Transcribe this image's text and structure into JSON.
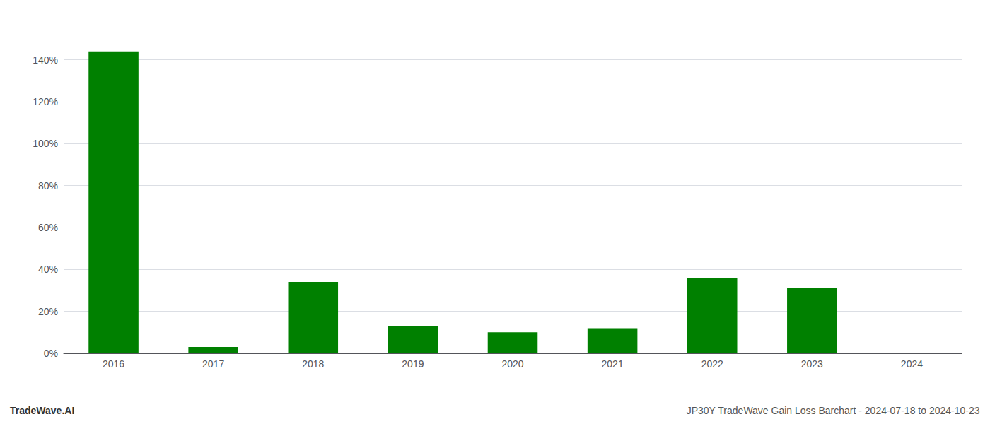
{
  "chart_data": {
    "type": "bar",
    "categories": [
      "2016",
      "2017",
      "2018",
      "2019",
      "2020",
      "2021",
      "2022",
      "2023",
      "2024"
    ],
    "values": [
      1.44,
      0.03,
      0.34,
      0.13,
      0.1,
      0.12,
      0.36,
      0.31,
      0.0
    ],
    "color": "#008000",
    "ylim": [
      0,
      1.55
    ],
    "yticks": [
      {
        "value": 0.0,
        "label": "0%"
      },
      {
        "value": 0.2,
        "label": "20%"
      },
      {
        "value": 0.4,
        "label": "40%"
      },
      {
        "value": 0.6,
        "label": "60%"
      },
      {
        "value": 0.8,
        "label": "80%"
      },
      {
        "value": 1.0,
        "label": "100%"
      },
      {
        "value": 1.2,
        "label": "120%"
      },
      {
        "value": 1.4,
        "label": "140%"
      }
    ],
    "grid": true,
    "annotations": [
      "TradeWave.AI",
      "JP30Y TradeWave Gain Loss Barchart - 2024-07-18 to 2024-10-23"
    ]
  }
}
